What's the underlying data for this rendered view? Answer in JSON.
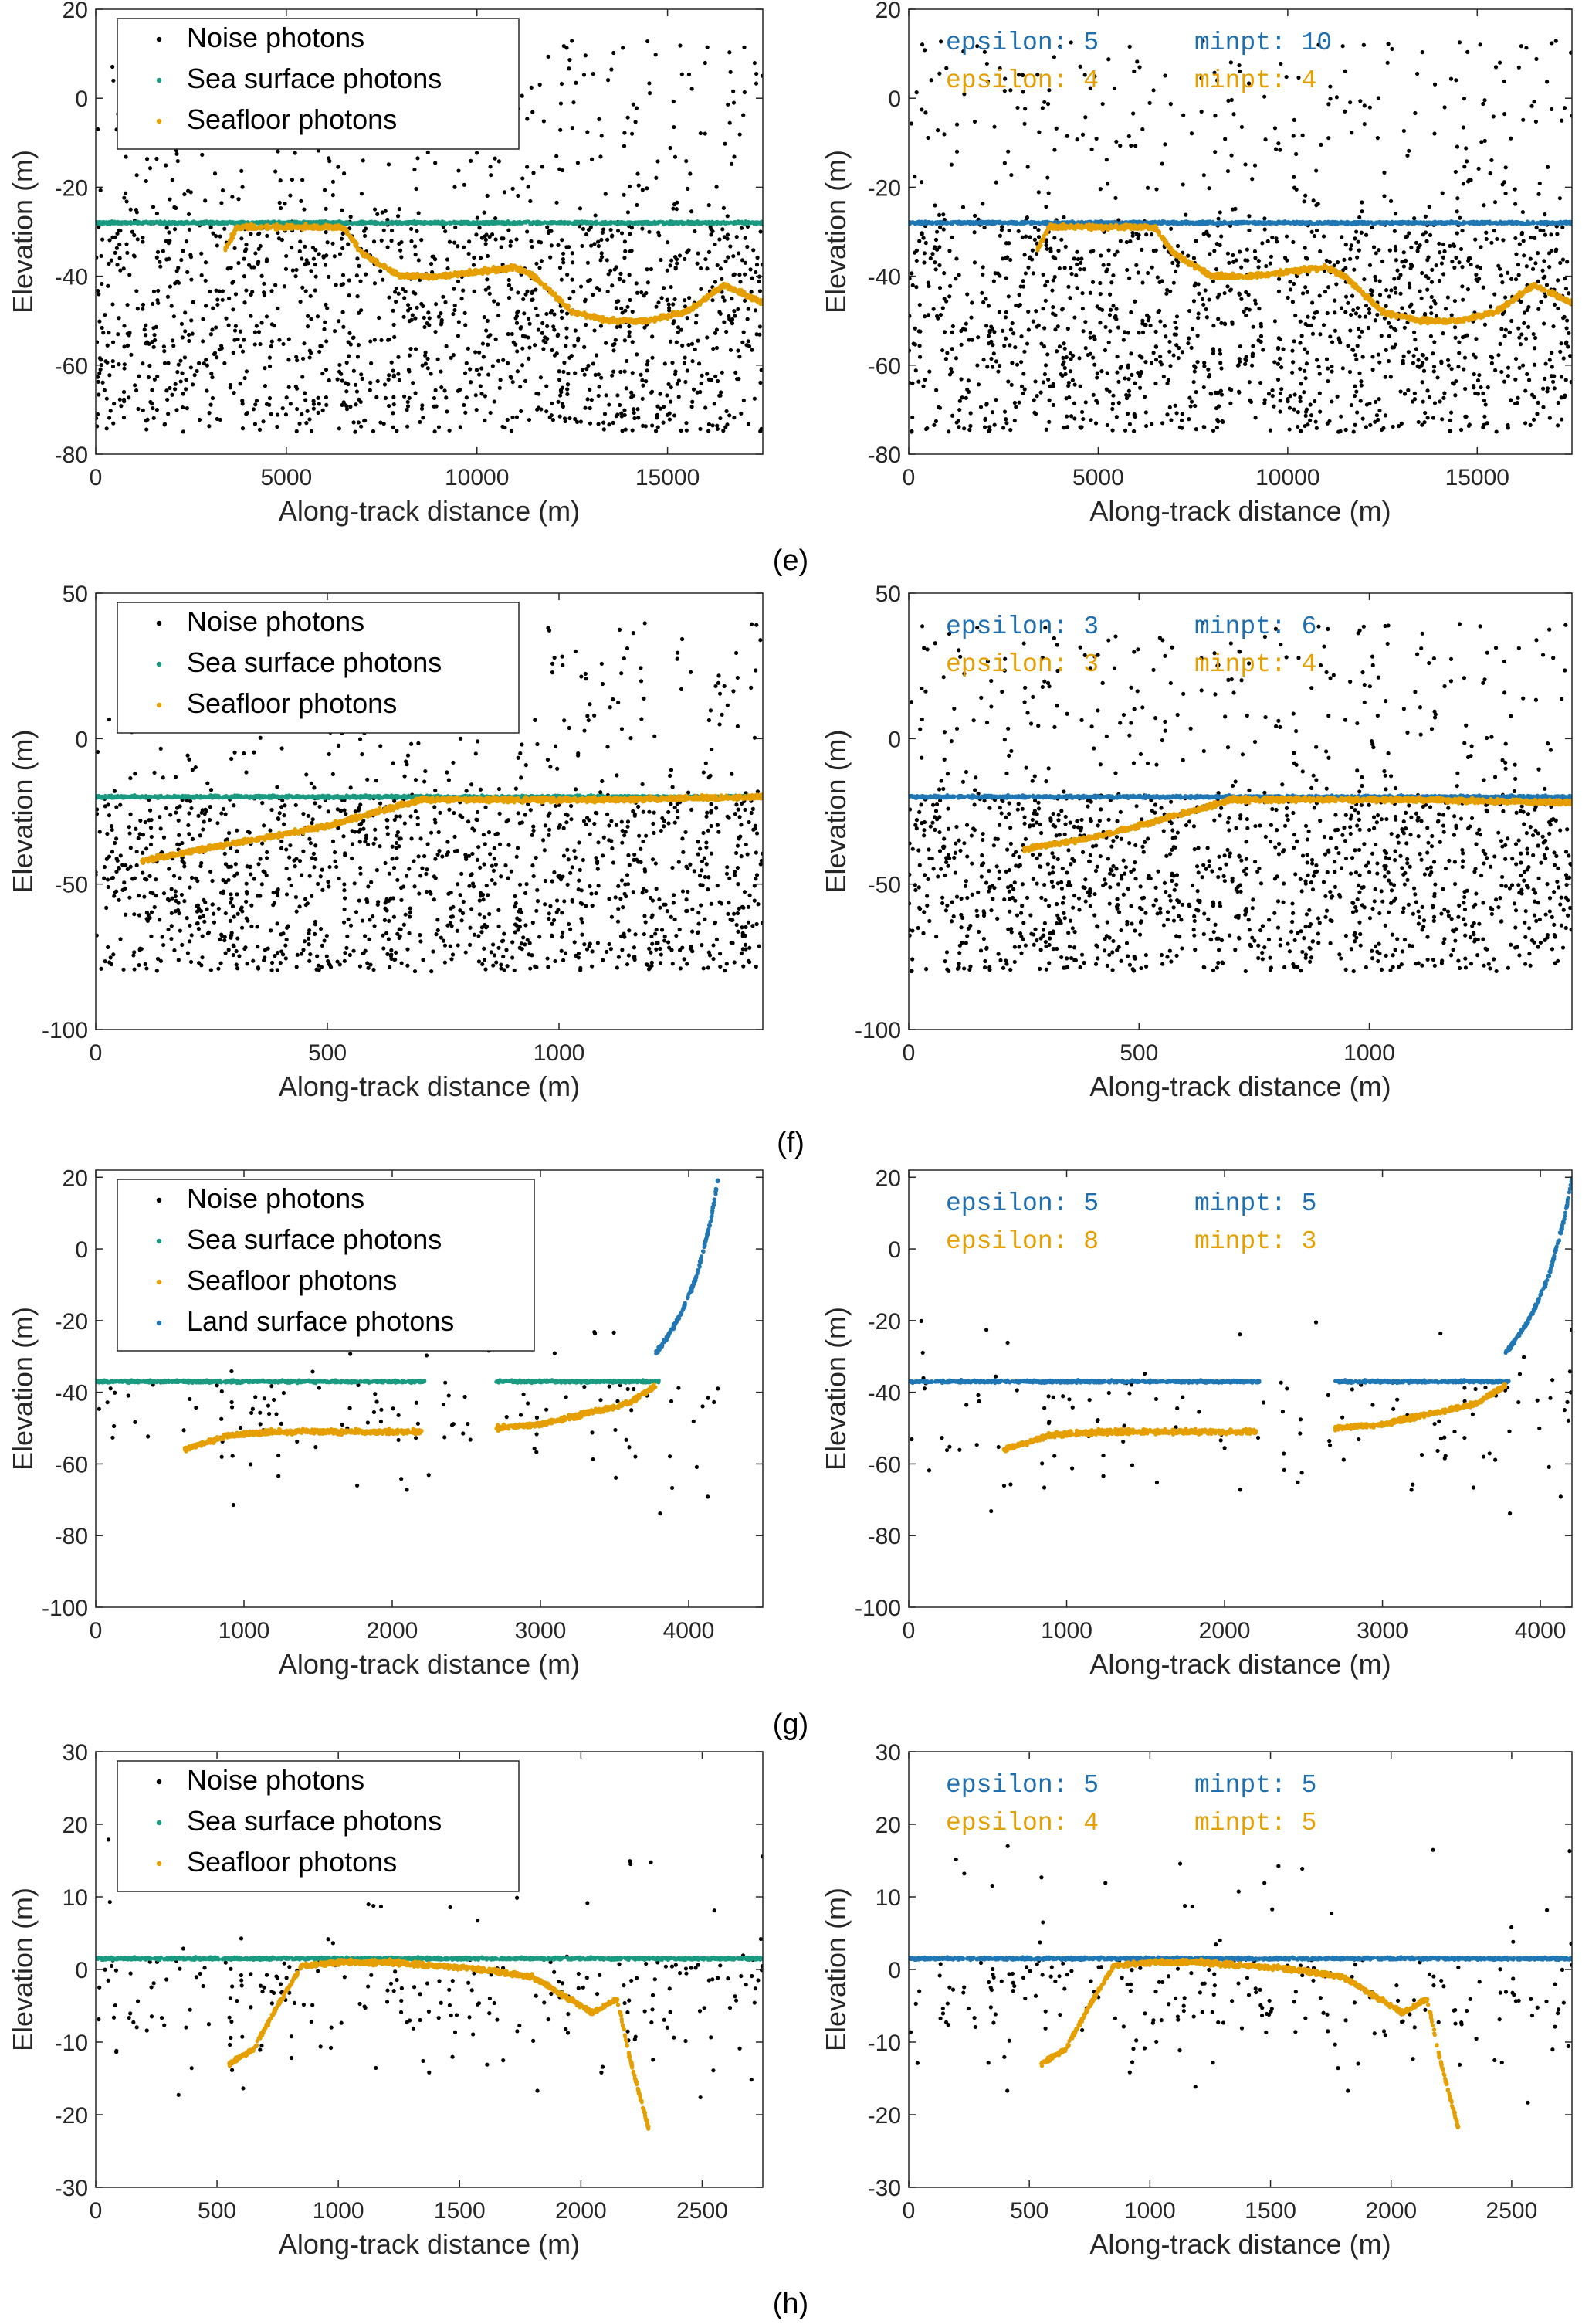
{
  "colors": {
    "noise": "#000000",
    "sea_surface": "#1a9a80",
    "seafloor": "#e69f00",
    "land_surface": "#1f77b4",
    "param_blue": "#1f6fb0",
    "param_orange": "#e69f00",
    "axis": "#262626"
  },
  "panel_labels": [
    "(e)",
    "(f)",
    "(g)",
    "(h)"
  ],
  "chart_data": [
    {
      "id": "e-left",
      "type": "scatter",
      "panel": "(e)",
      "xlabel": "Along-track distance (m)",
      "ylabel": "Elevation (m)",
      "xlim": [
        0,
        17500
      ],
      "ylim": [
        -80,
        20
      ],
      "xticks": [
        0,
        5000,
        10000,
        15000
      ],
      "yticks": [
        -80,
        -60,
        -40,
        -20,
        0,
        20
      ],
      "legend": [
        "Noise photons",
        "Sea surface photons",
        "Seafloor photons"
      ],
      "series": [
        {
          "name": "Noise photons",
          "role": "noise",
          "x": [
            0,
            17500
          ],
          "y_min": -75,
          "y_max": 13,
          "surface": -28,
          "count": 1600
        },
        {
          "name": "Sea surface photons",
          "role": "surface",
          "x": [
            0,
            17500
          ],
          "y": [
            -28,
            -28
          ]
        },
        {
          "name": "Seafloor photons",
          "role": "seafloor",
          "x": [
            3400,
            3700,
            4500,
            6500,
            7000,
            8000,
            9000,
            10000,
            11000,
            11500,
            12500,
            13500,
            14500,
            15500,
            16500,
            17500
          ],
          "y": [
            -34,
            -29,
            -29,
            -29,
            -35,
            -40,
            -40,
            -39,
            -38,
            -40,
            -48,
            -50,
            -50,
            -48,
            -42,
            -46
          ]
        }
      ]
    },
    {
      "id": "e-right",
      "type": "scatter",
      "panel": "(e)",
      "xlabel": "Along-track distance (m)",
      "ylabel": "Elevation (m)",
      "xlim": [
        0,
        17500
      ],
      "ylim": [
        -80,
        20
      ],
      "xticks": [
        0,
        5000,
        10000,
        15000
      ],
      "yticks": [
        -80,
        -60,
        -40,
        -20,
        0,
        20
      ],
      "params": {
        "blue_eps": "epsilon: 5",
        "blue_minpt": "minpt: 10",
        "orange_eps": "epsilon: 4",
        "orange_minpt": "minpt: 4"
      },
      "series": [
        {
          "name": "Noise photons",
          "role": "noise",
          "x": [
            0,
            17500
          ],
          "y_min": -75,
          "y_max": 13,
          "surface": -28,
          "count": 1600
        },
        {
          "name": "Sea surface photons",
          "role": "surface-blue",
          "x": [
            0,
            17500
          ],
          "y": [
            -28,
            -28
          ]
        },
        {
          "name": "Seafloor photons",
          "role": "seafloor",
          "x": [
            3400,
            3700,
            4500,
            6500,
            7000,
            8000,
            9000,
            10000,
            11000,
            11500,
            12500,
            13500,
            14500,
            15500,
            16500,
            17500
          ],
          "y": [
            -34,
            -29,
            -29,
            -29,
            -35,
            -40,
            -40,
            -39,
            -38,
            -40,
            -48,
            -50,
            -50,
            -48,
            -42,
            -46
          ]
        }
      ]
    },
    {
      "id": "f-left",
      "type": "scatter",
      "panel": "(f)",
      "xlabel": "Along-track distance (m)",
      "ylabel": "Elevation (m)",
      "xlim": [
        0,
        1440
      ],
      "ylim": [
        -100,
        50
      ],
      "xticks": [
        0,
        500,
        1000
      ],
      "yticks": [
        -100,
        -50,
        0,
        50
      ],
      "legend": [
        "Noise photons",
        "Sea surface photons",
        "Seafloor photons"
      ],
      "series": [
        {
          "name": "Noise photons",
          "role": "noise",
          "x": [
            0,
            1440
          ],
          "y_min": -80,
          "y_max": 40,
          "surface": -20,
          "count": 1500
        },
        {
          "name": "Sea surface photons",
          "role": "surface",
          "x": [
            0,
            1440
          ],
          "y": [
            -20,
            -20
          ]
        },
        {
          "name": "Seafloor photons",
          "role": "seafloor",
          "x": [
            100,
            300,
            500,
            700,
            900,
            1100,
            1440
          ],
          "y": [
            -42,
            -36,
            -30,
            -21,
            -21,
            -21,
            -20
          ]
        }
      ]
    },
    {
      "id": "f-right",
      "type": "scatter",
      "panel": "(f)",
      "xlabel": "Along-track distance (m)",
      "ylabel": "Elevation (m)",
      "xlim": [
        0,
        1440
      ],
      "ylim": [
        -100,
        50
      ],
      "xticks": [
        0,
        500,
        1000
      ],
      "yticks": [
        -100,
        -50,
        0,
        50
      ],
      "params": {
        "blue_eps": "epsilon: 3",
        "blue_minpt": "minpt: 6",
        "orange_eps": "epsilon: 3",
        "orange_minpt": "minpt: 4"
      },
      "series": [
        {
          "name": "Noise photons",
          "role": "noise",
          "x": [
            0,
            1440
          ],
          "y_min": -80,
          "y_max": 40,
          "surface": -20,
          "count": 1500
        },
        {
          "name": "Sea surface photons",
          "role": "surface-blue",
          "x": [
            0,
            1440
          ],
          "y": [
            -20,
            -20
          ]
        },
        {
          "name": "Seafloor photons",
          "role": "seafloor",
          "x": [
            250,
            400,
            500,
            700,
            900,
            1100,
            1440
          ],
          "y": [
            -38,
            -34,
            -30,
            -21,
            -21,
            -21,
            -22
          ]
        }
      ]
    },
    {
      "id": "g-left",
      "type": "scatter",
      "panel": "(g)",
      "xlabel": "Along-track distance (m)",
      "ylabel": "Elevation (m)",
      "xlim": [
        0,
        4500
      ],
      "ylim": [
        -100,
        22
      ],
      "xticks": [
        0,
        1000,
        2000,
        3000,
        4000
      ],
      "yticks": [
        -100,
        -80,
        -60,
        -40,
        -20,
        0,
        20
      ],
      "legend": [
        "Noise photons",
        "Sea surface photons",
        "Seafloor photons",
        "Land surface photons"
      ],
      "series": [
        {
          "name": "Noise photons",
          "role": "noise-sparse",
          "x": [
            0,
            4200
          ],
          "y_min": -90,
          "y_max": -20,
          "surface": -37,
          "count": 130
        },
        {
          "name": "Sea surface photons",
          "role": "surface",
          "x": [
            0,
            2220
          ],
          "y": [
            -37,
            -37
          ]
        },
        {
          "name": "Sea surface photons",
          "role": "surface",
          "x": [
            2700,
            3800
          ],
          "y": [
            -37,
            -37
          ]
        },
        {
          "name": "Seafloor photons",
          "role": "seafloor",
          "x": [
            600,
            900,
            1200,
            1500,
            1800,
            2200
          ],
          "y": [
            -56,
            -52,
            -51,
            -51,
            -51,
            -51
          ]
        },
        {
          "name": "Seafloor photons",
          "role": "seafloor",
          "x": [
            2700,
            3000,
            3300,
            3600,
            3780
          ],
          "y": [
            -50,
            -49,
            -46,
            -43,
            -38
          ]
        },
        {
          "name": "Land surface photons",
          "role": "land",
          "x": [
            3780,
            3850,
            3950,
            4050,
            4150,
            4200
          ],
          "y": [
            -29,
            -25,
            -18,
            -8,
            8,
            20
          ]
        }
      ]
    },
    {
      "id": "g-right",
      "type": "scatter",
      "panel": "(g)",
      "xlabel": "Along-track distance (m)",
      "ylabel": "Elevation (m)",
      "xlim": [
        0,
        4200
      ],
      "ylim": [
        -100,
        22
      ],
      "xticks": [
        0,
        1000,
        2000,
        3000,
        4000
      ],
      "yticks": [
        -100,
        -80,
        -60,
        -40,
        -20,
        0,
        20
      ],
      "params": {
        "blue_eps": "epsilon: 5",
        "blue_minpt": "minpt: 5",
        "orange_eps": "epsilon: 8",
        "orange_minpt": "minpt: 3"
      },
      "series": [
        {
          "name": "Noise photons",
          "role": "noise-sparse",
          "x": [
            0,
            4200
          ],
          "y_min": -90,
          "y_max": -20,
          "surface": -37,
          "count": 130
        },
        {
          "name": "Sea surface photons",
          "role": "surface-blue",
          "x": [
            0,
            2220
          ],
          "y": [
            -37,
            -37
          ]
        },
        {
          "name": "Sea surface photons",
          "role": "surface-blue",
          "x": [
            2700,
            3800
          ],
          "y": [
            -37,
            -37
          ]
        },
        {
          "name": "Seafloor photons",
          "role": "seafloor",
          "x": [
            600,
            900,
            1200,
            1500,
            1800,
            2200
          ],
          "y": [
            -56,
            -52,
            -51,
            -51,
            -51,
            -51
          ]
        },
        {
          "name": "Seafloor photons",
          "role": "seafloor",
          "x": [
            2700,
            3000,
            3300,
            3600,
            3780
          ],
          "y": [
            -50,
            -49,
            -46,
            -43,
            -38
          ]
        },
        {
          "name": "Land surface photons",
          "role": "land",
          "x": [
            3780,
            3850,
            3950,
            4050,
            4150,
            4200
          ],
          "y": [
            -29,
            -25,
            -18,
            -8,
            8,
            20
          ]
        }
      ]
    },
    {
      "id": "h-left",
      "type": "scatter",
      "panel": "(h)",
      "xlabel": "Along-track distance (m)",
      "ylabel": "Elevation (m)",
      "xlim": [
        0,
        2750
      ],
      "ylim": [
        -30,
        30
      ],
      "xticks": [
        0,
        500,
        1000,
        1500,
        2000,
        2500
      ],
      "yticks": [
        -30,
        -20,
        -10,
        0,
        10,
        20,
        30
      ],
      "legend": [
        "Noise photons",
        "Sea surface photons",
        "Seafloor photons"
      ],
      "series": [
        {
          "name": "Noise photons",
          "role": "noise-sparse",
          "x": [
            0,
            2750
          ],
          "y_min": -26,
          "y_max": 18,
          "surface": 1.5,
          "count": 260
        },
        {
          "name": "Sea surface photons",
          "role": "surface",
          "x": [
            0,
            2750
          ],
          "y": [
            1.5,
            1.5
          ]
        },
        {
          "name": "Seafloor photons",
          "role": "seafloor",
          "x": [
            550,
            650,
            750,
            850,
            1000,
            1200,
            1400,
            1600,
            1800,
            1950,
            2050,
            2150,
            2200,
            2280
          ],
          "y": [
            -13,
            -11,
            -5,
            0.5,
            1,
            1,
            0.5,
            0,
            -1,
            -4,
            -6,
            -4,
            -12,
            -22
          ]
        }
      ]
    },
    {
      "id": "h-right",
      "type": "scatter",
      "panel": "(h)",
      "xlabel": "Along-track distance (m)",
      "ylabel": "Elevation (m)",
      "xlim": [
        0,
        2750
      ],
      "ylim": [
        -30,
        30
      ],
      "xticks": [
        0,
        500,
        1000,
        1500,
        2000,
        2500
      ],
      "yticks": [
        -30,
        -20,
        -10,
        0,
        10,
        20,
        30
      ],
      "params": {
        "blue_eps": "epsilon: 5",
        "blue_minpt": "minpt: 5",
        "orange_eps": "epsilon: 4",
        "orange_minpt": "minpt: 5"
      },
      "series": [
        {
          "name": "Noise photons",
          "role": "noise-sparse",
          "x": [
            0,
            2750
          ],
          "y_min": -26,
          "y_max": 18,
          "surface": 1.5,
          "count": 260
        },
        {
          "name": "Sea surface photons",
          "role": "surface-blue",
          "x": [
            0,
            2750
          ],
          "y": [
            1.5,
            1.5
          ]
        },
        {
          "name": "Seafloor photons",
          "role": "seafloor",
          "x": [
            550,
            650,
            750,
            850,
            1000,
            1200,
            1400,
            1600,
            1800,
            1950,
            2050,
            2150,
            2200,
            2280
          ],
          "y": [
            -13,
            -11,
            -5,
            0.5,
            1,
            1,
            0.5,
            0,
            -1,
            -4,
            -6,
            -4,
            -12,
            -22
          ]
        }
      ]
    }
  ]
}
